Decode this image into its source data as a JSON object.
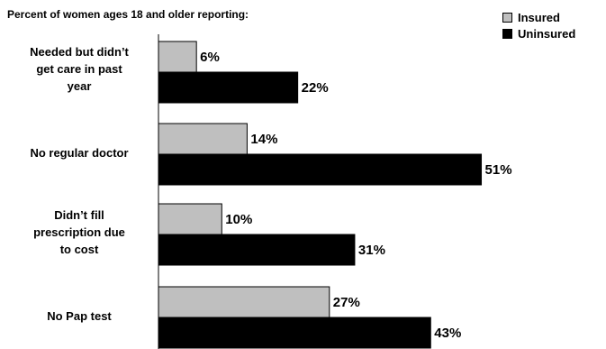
{
  "chart_data": {
    "type": "bar",
    "orientation": "horizontal",
    "subtitle": "Percent of women ages 18 and older reporting:",
    "categories": [
      "Needed but didn’t\nget care in past\nyear",
      "No regular doctor",
      "Didn’t fill\nprescription due\nto cost",
      "No Pap test"
    ],
    "series": [
      {
        "name": "Insured",
        "color": "#bfbfbf",
        "values": [
          6,
          14,
          10,
          27
        ],
        "labels": [
          "6%",
          "14%",
          "10%",
          "27%"
        ]
      },
      {
        "name": "Uninsured",
        "color": "#000000",
        "values": [
          22,
          51,
          31,
          43
        ],
        "labels": [
          "22%",
          "51%",
          "31%",
          "43%"
        ]
      }
    ],
    "xlim": [
      0,
      60
    ],
    "legend_position": "top-right",
    "grid": false
  }
}
